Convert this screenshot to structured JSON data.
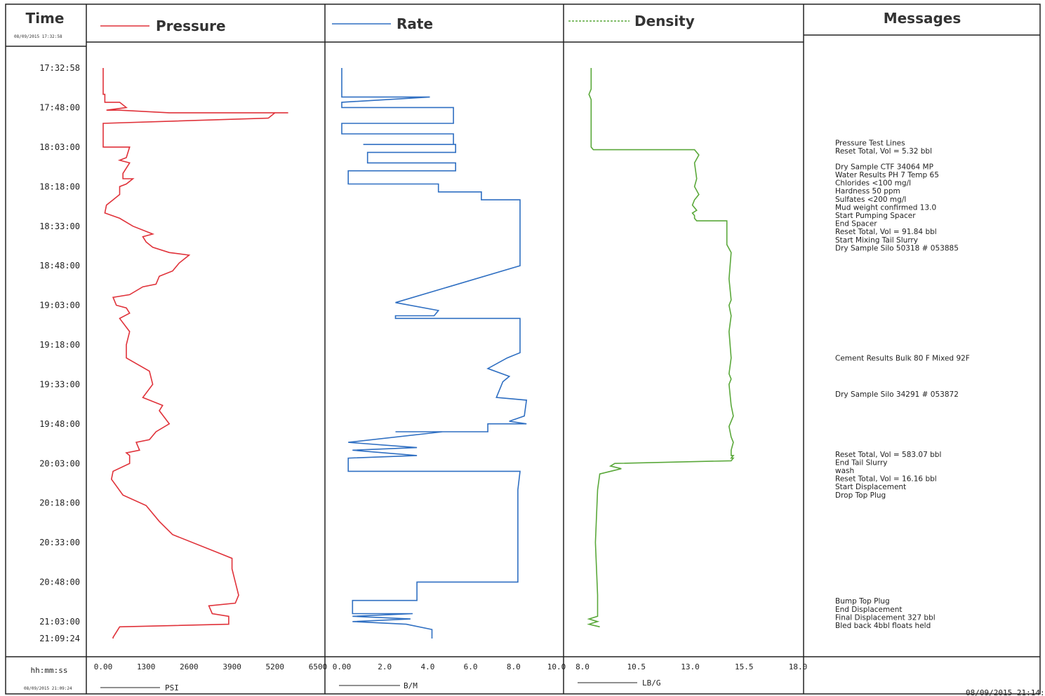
{
  "header": {
    "time_title": "Time",
    "start_datetime": "08/09/2015 17:32:58",
    "pressure_title": "Pressure",
    "rate_title": "Rate",
    "density_title": "Density",
    "messages_title": "Messages"
  },
  "footer": {
    "time_format": "hh:mm:ss",
    "end_datetime": "08/09/2015 21:09:24",
    "pressure_unit": "PSI",
    "rate_unit": "B/M",
    "density_unit": "LB/G",
    "print_stamp": "08/09/2015 21:14:2"
  },
  "colors": {
    "pressure": "#e0323a",
    "rate": "#2f6fc2",
    "density": "#5aa83a",
    "grid": "#222222"
  },
  "chart_data": {
    "type": "line",
    "y_axis": {
      "label": "Time",
      "ticks": [
        "17:32:58",
        "17:48:00",
        "18:03:00",
        "18:18:00",
        "18:33:00",
        "18:48:00",
        "19:03:00",
        "19:18:00",
        "19:33:00",
        "19:48:00",
        "20:03:00",
        "20:18:00",
        "20:33:00",
        "20:48:00",
        "21:03:00",
        "21:09:24"
      ],
      "tick_minutes": [
        0,
        15.03,
        30.03,
        45.03,
        60.03,
        75.03,
        90.03,
        105.03,
        120.03,
        135.03,
        150.03,
        165.03,
        180.03,
        195.03,
        210.03,
        216.43
      ],
      "range_minutes": [
        0,
        216.43
      ]
    },
    "series": [
      {
        "name": "Pressure",
        "unit": "PSI",
        "xlim": [
          0,
          6500
        ],
        "x_ticks": [
          "0.00",
          "1300",
          "2600",
          "3900",
          "5200",
          "6500"
        ],
        "x": [
          0,
          0,
          50,
          50,
          500,
          700,
          100,
          500,
          2000,
          5600,
          5200,
          5000,
          0,
          0,
          0,
          800,
          700,
          500,
          800,
          600,
          600,
          900,
          700,
          500,
          500,
          300,
          100,
          50,
          500,
          900,
          1500,
          1200,
          1300,
          1500,
          2000,
          2600,
          2300,
          2100,
          1700,
          1600,
          1200,
          800,
          300,
          400,
          700,
          800,
          500,
          800,
          700,
          700,
          1400,
          1500,
          1200,
          1800,
          1700,
          2000,
          1600,
          1400,
          1000,
          1100,
          700,
          800,
          800,
          300,
          250,
          600,
          1300,
          1700,
          2100,
          3500,
          3900,
          3900,
          4000,
          4100,
          4000,
          3200,
          3300,
          3800,
          3800,
          500,
          500,
          300,
          300
        ],
        "y": [
          0,
          10,
          10,
          13,
          13,
          15,
          16,
          16,
          17,
          17,
          17,
          19,
          21,
          29,
          30,
          30,
          34,
          35,
          36,
          40,
          42,
          42,
          44,
          45,
          48,
          50,
          52,
          55,
          57,
          60,
          63,
          64,
          66,
          68,
          70,
          71,
          74,
          77,
          79,
          82,
          83,
          86,
          87,
          90,
          91,
          93,
          95,
          100,
          105,
          110,
          115,
          120,
          125,
          128,
          130,
          135,
          138,
          141,
          142,
          145,
          146,
          147,
          150,
          153,
          156,
          162,
          166,
          172,
          177,
          184,
          186,
          190,
          195,
          200,
          203,
          204,
          207,
          208,
          211,
          212,
          212,
          216,
          216.43
        ]
      },
      {
        "name": "Rate",
        "unit": "B/M",
        "xlim": [
          0,
          10
        ],
        "x_ticks": [
          "0.00",
          "2.0",
          "4.0",
          "6.0",
          "8.0",
          "10.0"
        ],
        "x": [
          0,
          0,
          4.1,
          0,
          0,
          5.2,
          5.2,
          0,
          0,
          1.0,
          5.2,
          5.2,
          1.0,
          5.3,
          5.3,
          1.2,
          1.2,
          5.3,
          5.3,
          0.3,
          0.3,
          4.5,
          4.5,
          6.5,
          6.5,
          8.3,
          8.3,
          2.5,
          4.5,
          4.3,
          2.5,
          2.5,
          6.0,
          8.3,
          8.3,
          7.7,
          6.8,
          7.8,
          7.5,
          7.2,
          8.6,
          8.5,
          7.8,
          8.6,
          6.8,
          6.8,
          2.5,
          4.7,
          0.3,
          3.5,
          0.5,
          3.5,
          0.3,
          0.3,
          8.3,
          8.2,
          8.2,
          3.5,
          3.5,
          0.5,
          0.5,
          3.3,
          0.5,
          3.2,
          0.5,
          3.0,
          4.2,
          4.2
        ],
        "y": [
          0,
          11,
          11,
          13,
          15,
          15,
          21,
          21,
          25,
          25,
          25,
          29,
          29,
          29,
          32,
          32,
          36,
          36,
          39,
          39,
          44,
          44,
          47,
          47,
          50,
          50,
          75,
          89,
          92,
          94,
          94,
          95,
          95,
          95,
          108,
          110,
          114,
          117,
          119,
          125,
          126,
          132,
          134,
          135,
          135,
          138,
          138,
          138,
          142,
          144,
          145,
          147,
          148,
          153,
          153,
          160,
          195,
          195,
          202,
          202,
          207,
          207,
          208,
          209,
          210,
          211,
          213,
          216.43
        ]
      },
      {
        "name": "Density",
        "unit": "LB/G",
        "xlim": [
          8.0,
          18.0
        ],
        "x_ticks": [
          "8.0",
          "10.5",
          "13.0",
          "15.5",
          "18.0"
        ],
        "x": [
          8.4,
          8.4,
          8.3,
          8.4,
          8.4,
          8.5,
          13.2,
          13.4,
          13.2,
          13.3,
          13.2,
          13.4,
          13.2,
          13.1,
          13.3,
          13.1,
          13.2,
          13.2,
          13.3,
          14.7,
          14.7,
          14.9,
          14.8,
          14.9,
          14.8,
          14.9,
          14.8,
          14.9,
          14.8,
          14.9,
          14.8,
          14.9,
          15.0,
          14.8,
          14.9,
          15.0,
          14.9,
          14.9,
          15.0,
          14.9,
          15.0,
          14.9,
          9.5,
          9.3,
          9.8,
          8.8,
          8.7,
          8.6,
          8.7,
          8.7,
          8.3,
          8.7,
          8.3,
          8.8
        ],
        "y": [
          0,
          8,
          10,
          12,
          30,
          31,
          31,
          33,
          36,
          42,
          45,
          48,
          50,
          52,
          54,
          55,
          56,
          57,
          58,
          58,
          67,
          70,
          80,
          88,
          90,
          94,
          100,
          110,
          116,
          118,
          120,
          128,
          132,
          136,
          140,
          142,
          145,
          147,
          147,
          148,
          148,
          149,
          150,
          151,
          152,
          154,
          160,
          180,
          200,
          208,
          209,
          210,
          211,
          212
        ]
      }
    ],
    "messages": [
      {
        "y": 29.4,
        "lines": [
          "Pressure Test Lines",
          "Reset Total, Vol = 5.32  bbl"
        ]
      },
      {
        "y": 38.4,
        "lines": [
          "Dry Sample CTF 34064 MP",
          "Water Results PH 7 Temp 65",
          "Chlorides <100 mg/l",
          "Hardness 50 ppm",
          "Sulfates <200 mg/l",
          "Mud weight confirmed 13.0",
          "Start Pumping Spacer",
          "End Spacer",
          "Reset Total, Vol = 91.84  bbl",
          "Start Mixing Tail Slurry",
          "Dry Sample Silo 50318 # 053885"
        ]
      },
      {
        "y": 111.0,
        "lines": [
          "Cement Results Bulk 80 F Mixed 92F"
        ]
      },
      {
        "y": 124.7,
        "lines": [
          "Dry Sample Silo 34291 # 053872"
        ]
      },
      {
        "y": 147.5,
        "lines": [
          "Reset Total, Vol = 583.07  bbl",
          "End Tail Slurry",
          "wash",
          "Reset Total, Vol = 16.16  bbl",
          "Start Displacement",
          "Drop Top Plug"
        ]
      },
      {
        "y": 203.2,
        "lines": [
          "Bump Top Plug",
          "End Displacement",
          "Final Displacement 327 bbl",
          "Bled back 4bbl floats held"
        ]
      }
    ]
  }
}
